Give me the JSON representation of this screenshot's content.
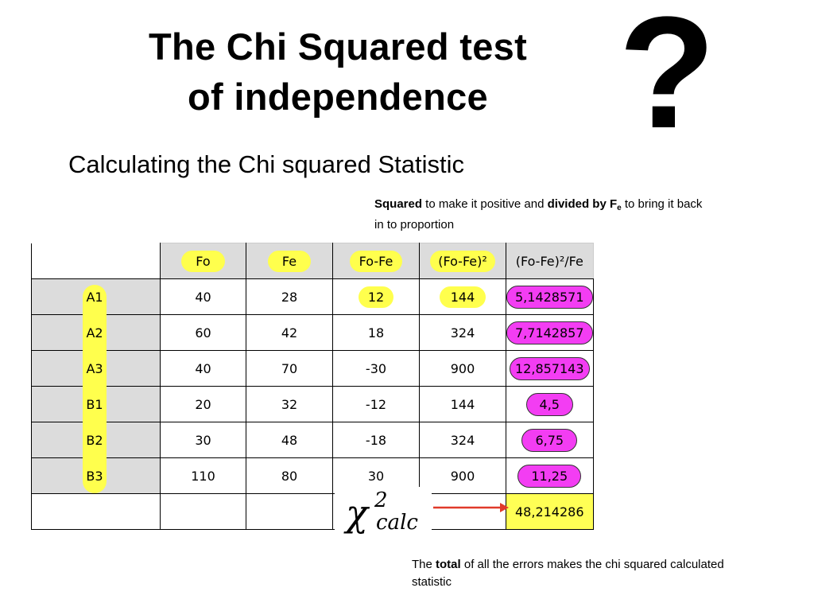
{
  "title": {
    "line1": "The Chi Squared test",
    "line2": "of independence"
  },
  "question_mark": "?",
  "subtitle": "Calculating the Chi squared Statistic",
  "note_top": {
    "bold1": "Squared",
    "text1": " to make it positive and ",
    "bold2": "divided by F",
    "sub": "e",
    "text2": " to bring it back in to proportion"
  },
  "note_bottom": {
    "text1": "The ",
    "bold": "total",
    "text2": " of all the errors makes the chi squared calculated statistic"
  },
  "table": {
    "headers": [
      "Fo",
      "Fe",
      "Fo-Fe",
      "(Fo-Fe)²",
      "(Fo-Fe)²/Fe"
    ],
    "rows": [
      {
        "label": "A1",
        "fo": "40",
        "fe": "28",
        "diff": "12",
        "sq": "144",
        "ratio": "5,1428571"
      },
      {
        "label": "A2",
        "fo": "60",
        "fe": "42",
        "diff": "18",
        "sq": "324",
        "ratio": "7,7142857"
      },
      {
        "label": "A3",
        "fo": "40",
        "fe": "70",
        "diff": "-30",
        "sq": "900",
        "ratio": "12,857143"
      },
      {
        "label": "B1",
        "fo": "20",
        "fe": "32",
        "diff": "-12",
        "sq": "144",
        "ratio": "4,5"
      },
      {
        "label": "B2",
        "fo": "30",
        "fe": "48",
        "diff": "-18",
        "sq": "324",
        "ratio": "6,75"
      },
      {
        "label": "B3",
        "fo": "110",
        "fe": "80",
        "diff": "30",
        "sq": "900",
        "ratio": "11,25"
      }
    ],
    "total": "48,214286"
  },
  "chi_label": {
    "symbol": "χ",
    "superscript": "2",
    "subscript": "calc"
  },
  "colors": {
    "yellow_highlight": "#ffff4d",
    "magenta_highlight": "#f33df3",
    "header_grey": "#dcdcdc",
    "arrow_red": "#e03a2a"
  }
}
